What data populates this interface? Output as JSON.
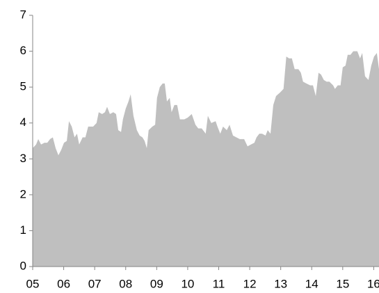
{
  "chart_data": {
    "type": "area",
    "color": "#bfbfbf",
    "grid": false,
    "xlim": [
      2005,
      2016.17
    ],
    "ylim": [
      0,
      7
    ],
    "yticks": [
      0,
      1,
      2,
      3,
      4,
      5,
      6,
      7
    ],
    "xticks": [
      {
        "value": 2005,
        "label": "05"
      },
      {
        "value": 2006,
        "label": "06"
      },
      {
        "value": 2007,
        "label": "07"
      },
      {
        "value": 2008,
        "label": "08"
      },
      {
        "value": 2009,
        "label": "09"
      },
      {
        "value": 2010,
        "label": "10"
      },
      {
        "value": 2011,
        "label": "11"
      },
      {
        "value": 2012,
        "label": "12"
      },
      {
        "value": 2013,
        "label": "13"
      },
      {
        "value": 2014,
        "label": "14"
      },
      {
        "value": 2015,
        "label": "15"
      },
      {
        "value": 2016,
        "label": "16"
      }
    ],
    "x": [
      2005.0,
      2005.11,
      2005.18,
      2005.27,
      2005.38,
      2005.47,
      2005.56,
      2005.65,
      2005.74,
      2005.83,
      2005.92,
      2006.01,
      2006.1,
      2006.17,
      2006.26,
      2006.35,
      2006.43,
      2006.5,
      2006.61,
      2006.7,
      2006.79,
      2006.95,
      2007.06,
      2007.13,
      2007.24,
      2007.33,
      2007.4,
      2007.49,
      2007.6,
      2007.69,
      2007.76,
      2007.85,
      2007.91,
      2008.0,
      2008.09,
      2008.16,
      2008.25,
      2008.36,
      2008.45,
      2008.54,
      2008.61,
      2008.68,
      2008.74,
      2008.86,
      2008.95,
      2009.01,
      2009.1,
      2009.19,
      2009.26,
      2009.33,
      2009.42,
      2009.48,
      2009.57,
      2009.66,
      2009.75,
      2009.89,
      2010.0,
      2010.13,
      2010.25,
      2010.34,
      2010.45,
      2010.54,
      2010.58,
      2010.65,
      2010.76,
      2010.9,
      2010.96,
      2011.05,
      2011.14,
      2011.26,
      2011.35,
      2011.46,
      2011.57,
      2011.68,
      2011.82,
      2011.93,
      2012.04,
      2012.15,
      2012.22,
      2012.31,
      2012.4,
      2012.51,
      2012.58,
      2012.67,
      2012.76,
      2012.85,
      2012.98,
      2013.09,
      2013.18,
      2013.27,
      2013.36,
      2013.45,
      2013.57,
      2013.65,
      2013.72,
      2013.83,
      2013.95,
      2014.04,
      2014.13,
      2014.22,
      2014.3,
      2014.39,
      2014.48,
      2014.57,
      2014.69,
      2014.75,
      2014.84,
      2014.93,
      2015.0,
      2015.09,
      2015.16,
      2015.25,
      2015.34,
      2015.47,
      2015.56,
      2015.63,
      2015.72,
      2015.83,
      2015.92,
      2016.01,
      2016.1,
      2016.17
    ],
    "values": [
      3.3,
      3.4,
      3.55,
      3.4,
      3.45,
      3.45,
      3.55,
      3.6,
      3.3,
      3.1,
      3.25,
      3.45,
      3.5,
      4.05,
      3.9,
      3.6,
      3.7,
      3.4,
      3.6,
      3.6,
      3.9,
      3.9,
      4.0,
      4.3,
      4.25,
      4.3,
      4.45,
      4.25,
      4.3,
      4.25,
      3.8,
      3.75,
      4.1,
      4.4,
      4.6,
      4.8,
      4.2,
      3.8,
      3.65,
      3.6,
      3.5,
      3.3,
      3.8,
      3.9,
      3.95,
      4.7,
      5.0,
      5.1,
      5.1,
      4.6,
      4.7,
      4.3,
      4.5,
      4.5,
      4.1,
      4.1,
      4.15,
      4.25,
      3.95,
      3.85,
      3.85,
      3.75,
      3.7,
      4.2,
      4.0,
      4.05,
      3.9,
      3.7,
      3.9,
      3.8,
      3.95,
      3.65,
      3.6,
      3.55,
      3.55,
      3.35,
      3.4,
      3.45,
      3.6,
      3.7,
      3.7,
      3.65,
      3.8,
      3.7,
      4.5,
      4.75,
      4.85,
      4.95,
      5.85,
      5.8,
      5.8,
      5.5,
      5.5,
      5.4,
      5.15,
      5.1,
      5.05,
      5.05,
      4.75,
      5.4,
      5.35,
      5.2,
      5.15,
      5.15,
      5.05,
      4.95,
      5.05,
      5.05,
      5.55,
      5.6,
      5.9,
      5.9,
      6.0,
      6.0,
      5.8,
      5.95,
      5.3,
      5.2,
      5.6,
      5.85,
      5.95,
      5.5
    ]
  }
}
